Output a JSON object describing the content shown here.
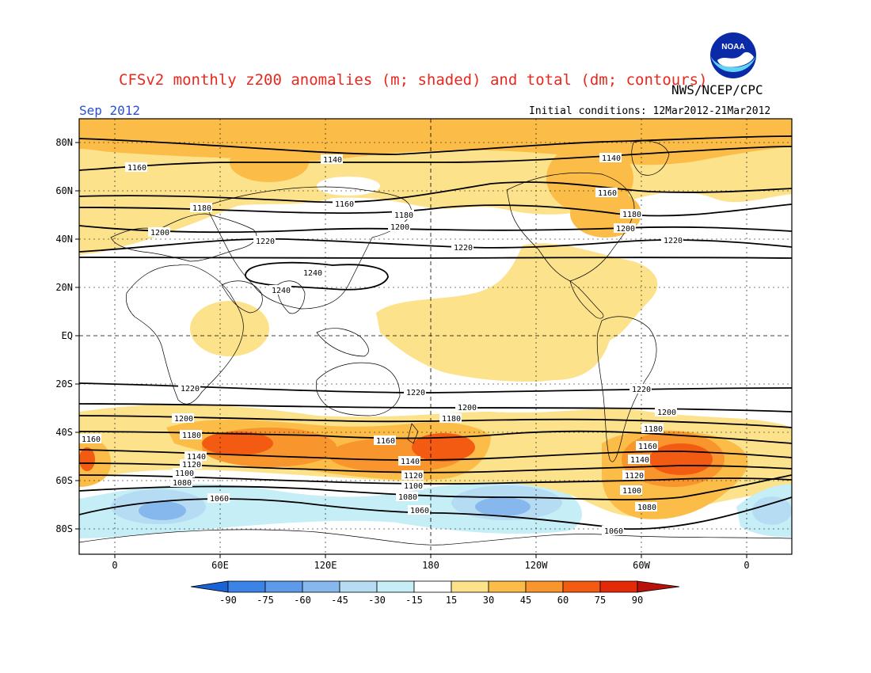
{
  "header": {
    "title": "CFSv2 monthly z200 anomalies (m; shaded) and total (dm; contours)",
    "agency": "NWS/NCEP/CPC",
    "month": "Sep 2012",
    "initial_conditions": "Initial conditions: 12Mar2012-21Mar2012",
    "logo_text": "NOAA"
  },
  "axes": {
    "lat_labels": [
      "80N",
      "60N",
      "40N",
      "20N",
      "EQ",
      "20S",
      "40S",
      "60S",
      "80S"
    ],
    "lon_labels": [
      "0",
      "60E",
      "120E",
      "180",
      "120W",
      "60W",
      "0"
    ]
  },
  "colorbar": {
    "labels": [
      "-90",
      "-75",
      "-60",
      "-45",
      "-30",
      "-15",
      "15",
      "30",
      "45",
      "60",
      "75",
      "90"
    ],
    "colors": [
      "#1a63d6",
      "#3b83e6",
      "#5d9be9",
      "#86b8ee",
      "#b6dcf4",
      "#c6eef7",
      "#ffffff",
      "#fde28c",
      "#fbbd48",
      "#f8952d",
      "#f35b12",
      "#e22a08",
      "#b8100a"
    ]
  },
  "contour_labels": [
    "1140",
    "1160",
    "1180",
    "1200",
    "1220",
    "1240",
    "1240",
    "1220",
    "1200",
    "1180",
    "1160",
    "1140",
    "1120",
    "1100",
    "1080",
    "1060"
  ]
}
